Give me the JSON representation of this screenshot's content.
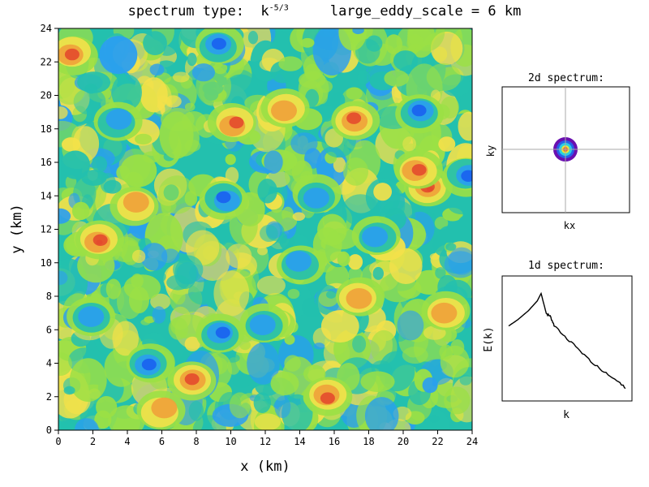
{
  "title": {
    "prefix": "spectrum type:  k",
    "exponent": "-5/3",
    "suffix": "     large_eddy_scale = 6 km"
  },
  "chart_data": [
    {
      "type": "heatmap",
      "xlabel": "x (km)",
      "ylabel": "y (km)",
      "xlim": [
        0,
        24
      ],
      "ylim": [
        0,
        24
      ],
      "xticks": [
        "0",
        "2",
        "4",
        "6",
        "8",
        "10",
        "12",
        "14",
        "16",
        "18",
        "20",
        "22",
        "24"
      ],
      "yticks": [
        "0",
        "2",
        "4",
        "6",
        "8",
        "10",
        "12",
        "14",
        "16",
        "18",
        "20",
        "22",
        "24"
      ],
      "colormap": [
        "#1a60f0",
        "#2a9ef0",
        "#23c0ae",
        "#9be045",
        "#f3e14a",
        "#f0a23a",
        "#e34a2e"
      ],
      "hotspots": [
        {
          "x": 2.3,
          "y": 11.3,
          "level": 6
        },
        {
          "x": 21.5,
          "y": 14.5,
          "level": 6
        },
        {
          "x": 20.8,
          "y": 15.5,
          "level": 5
        },
        {
          "x": 7.8,
          "y": 3.0,
          "level": 5
        },
        {
          "x": 15.5,
          "y": 2.0,
          "level": 5
        },
        {
          "x": 10.2,
          "y": 18.3,
          "level": 5
        },
        {
          "x": 0.8,
          "y": 22.5,
          "level": 5
        },
        {
          "x": 17.2,
          "y": 18.5,
          "level": 5
        },
        {
          "x": 4.5,
          "y": 13.5,
          "level": 4
        },
        {
          "x": 13.2,
          "y": 19.2,
          "level": 4
        },
        {
          "x": 22.5,
          "y": 7.0,
          "level": 4
        },
        {
          "x": 17.5,
          "y": 8.0,
          "level": 4
        },
        {
          "x": 6.0,
          "y": 1.2,
          "level": 4
        },
        {
          "x": 21.0,
          "y": 19.0,
          "level": 0
        },
        {
          "x": 9.3,
          "y": 23.0,
          "level": 0
        },
        {
          "x": 9.7,
          "y": 13.8,
          "level": 0
        },
        {
          "x": 5.3,
          "y": 3.9,
          "level": 0
        },
        {
          "x": 14.0,
          "y": 10.0,
          "level": 1
        },
        {
          "x": 3.5,
          "y": 18.5,
          "level": 1
        },
        {
          "x": 18.5,
          "y": 11.5,
          "level": 1
        },
        {
          "x": 11.8,
          "y": 6.3,
          "level": 1
        },
        {
          "x": 2.0,
          "y": 6.8,
          "level": 1
        },
        {
          "x": 9.5,
          "y": 5.7,
          "level": 0
        },
        {
          "x": 23.7,
          "y": 15.2,
          "level": 0
        },
        {
          "x": 15.0,
          "y": 14.0,
          "level": 1
        }
      ]
    },
    {
      "type": "heatmap",
      "title": "2d spectrum:",
      "xlabel": "kx",
      "ylabel": "ky",
      "rings": [
        "#6a0fb0",
        "#2860e8",
        "#2ad0e0",
        "#e8e83a",
        "#f06a2a"
      ]
    },
    {
      "type": "line",
      "title": "1d spectrum:",
      "xlabel": "k",
      "ylabel": "E(k)",
      "x": [
        0.05,
        0.12,
        0.2,
        0.27,
        0.3,
        0.34,
        0.37,
        0.4,
        0.5,
        0.6,
        0.7,
        0.8,
        0.9,
        0.95
      ],
      "y": [
        0.5,
        0.55,
        0.62,
        0.7,
        0.76,
        0.6,
        0.58,
        0.5,
        0.4,
        0.3,
        0.2,
        0.12,
        0.05,
        0.0
      ],
      "xlim": [
        0,
        1
      ],
      "ylim": [
        -0.1,
        0.9
      ]
    }
  ]
}
